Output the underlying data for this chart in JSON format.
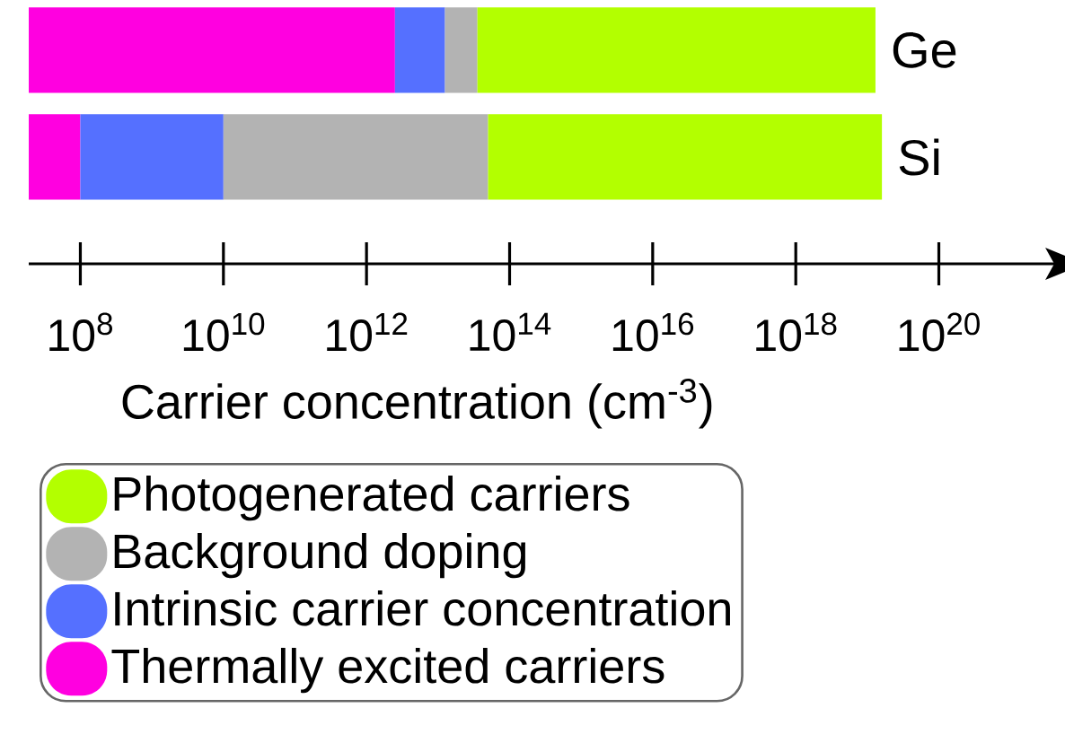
{
  "chart_data": {
    "type": "bar",
    "orientation": "horizontal",
    "stacked": true,
    "log": "x",
    "xlabel": "Carrier concentration (cm$^{-3}$)",
    "categories": [
      "Ge",
      "Si"
    ],
    "series": [
      {
        "name": "Thermally excited carriers",
        "color": "#ff00e0",
        "values": [
          2500000000000.0,
          100000000.0
        ]
      },
      {
        "name": "Intrinsic carrier concentration",
        "color": "#5570ff",
        "values": [
          10000000000000.0,
          9900000000.0
        ]
      },
      {
        "name": "Background doping",
        "color": "#b3b3b3",
        "values": [
          23000000000000.0,
          50000000000000.0
        ]
      },
      {
        "name": "Photogenerated carriers",
        "color": "#b3ff00",
        "values": [
          1.3e+19,
          1.6e+19
        ]
      }
    ],
    "xlim": [
      19000000.0,
      5.8e+21
    ],
    "xticks": [
      {
        "value": 100000000.0,
        "label": "10$^{8}$"
      },
      {
        "value": 10000000000.0,
        "label": "10$^{10}$"
      },
      {
        "value": 1000000000000.0,
        "label": "10$^{12}$"
      },
      {
        "value": 100000000000000.0,
        "label": "10$^{14}$"
      },
      {
        "value": 1e+16,
        "label": "10$^{16}$"
      },
      {
        "value": 1e+18,
        "label": "10$^{18}$"
      },
      {
        "value": 1e+20,
        "label": "10$^{20}$"
      }
    ],
    "legend": "bottom",
    "grid": false
  }
}
